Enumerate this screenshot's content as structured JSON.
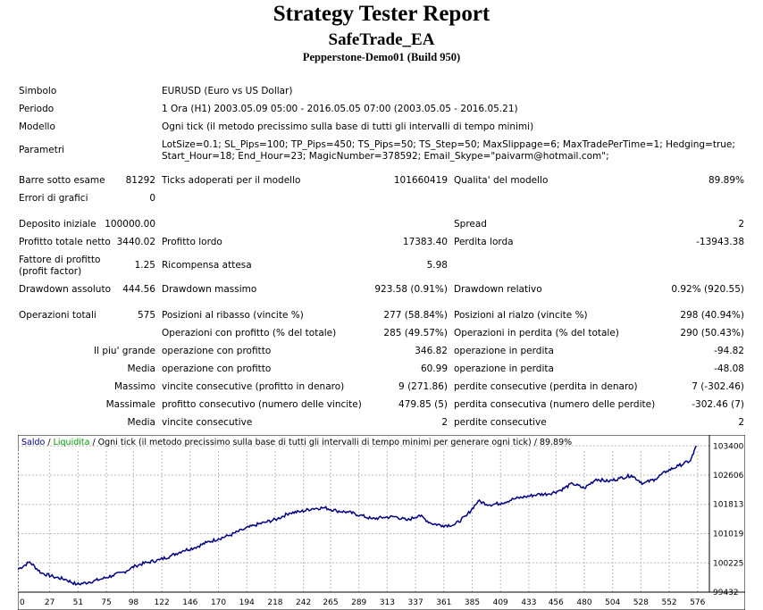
{
  "report": {
    "title": "Strategy Tester Report",
    "expert": "SafeTrade_EA",
    "server": "Pepperstone-Demo01 (Build 950)"
  },
  "info": {
    "symbol_label": "Simbolo",
    "symbol_value": "EURUSD (Euro vs US Dollar)",
    "period_label": "Periodo",
    "period_value": "1 Ora (H1) 2003.05.09 05:00 - 2016.05.05 07:00 (2003.05.05 - 2016.05.21)",
    "model_label": "Modello",
    "model_value": "Ogni tick (il metodo precissimo sulla base di tutti gli intervalli di tempo minimi)",
    "params_label": "Parametri",
    "params_line1": "LotSize=0.1; SL_Pips=100; TP_Pips=450; TS_Pips=50; TS_Step=50; MaxSlippage=6; MaxTradePerTime=1; Hedging=true;",
    "params_line2": "Start_Hour=18; End_Hour=23; MagicNumber=378592; Email_Skype=\"paivarm@hotmail.com\";"
  },
  "stats": {
    "bars_label": "Barre sotto esame",
    "bars_value": "81292",
    "ticks_label": "Ticks adoperati per il modello",
    "ticks_value": "101660419",
    "quality_label": "Qualita' del modello",
    "quality_value": "89.89%",
    "errors_label": "Errori di grafici",
    "errors_value": "0",
    "deposit_label": "Deposito iniziale",
    "deposit_value": "100000.00",
    "spread_label": "Spread",
    "spread_value": "2",
    "net_label": "Profitto totale netto",
    "net_value": "3440.02",
    "gross_profit_label": "Profitto lordo",
    "gross_profit_value": "17383.40",
    "gross_loss_label": "Perdita lorda",
    "gross_loss_value": "-13943.38",
    "pf_label_1": "Fattore di profitto",
    "pf_label_2": "(profit factor)",
    "pf_value": "1.25",
    "expected_label": "Ricompensa attesa",
    "expected_value": "5.98",
    "dd_abs_label": "Drawdown assoluto",
    "dd_abs_value": "444.56",
    "dd_max_label": "Drawdown massimo",
    "dd_max_value": "923.58 (0.91%)",
    "dd_rel_label": "Drawdown relativo",
    "dd_rel_value": "0.92% (920.55)",
    "trades_label": "Operazioni totali",
    "trades_value": "575",
    "short_label": "Posizioni al ribasso (vincite %)",
    "short_value": "277 (58.84%)",
    "long_label": "Posizioni al rialzo (vincite %)",
    "long_value": "298 (40.94%)",
    "profit_trades_label": "Operazioni con profitto (% del totale)",
    "profit_trades_value": "285 (49.57%)",
    "loss_trades_label": "Operazioni in perdita (% del totale)",
    "loss_trades_value": "290 (50.43%)",
    "largest_label": "Il piu' grande",
    "largest_profit_label": "operazione con profitto",
    "largest_profit_value": "346.82",
    "largest_loss_label": "operazione in perdita",
    "largest_loss_value": "-94.82",
    "average_label": "Media",
    "avg_profit_label": "operazione con profitto",
    "avg_profit_value": "60.99",
    "avg_loss_label": "operazione in perdita",
    "avg_loss_value": "-48.08",
    "maximum_label": "Massimo",
    "max_wins_label": "vincite consecutive (profitto in denaro)",
    "max_wins_value": "9 (271.86)",
    "max_losses_label": "perdite consecutive (perdita in denaro)",
    "max_losses_value": "7 (-302.46)",
    "maximal_label": "Massimale",
    "maximal_profit_label": "profitto consecutivo (numero delle vincite)",
    "maximal_profit_value": "479.85 (5)",
    "maximal_loss_label": "perdita consecutiva (numero delle perdite)",
    "maximal_loss_value": "-302.46 (7)",
    "average2_label": "Media",
    "avg_wins_label": "vincite consecutive",
    "avg_wins_value": "2",
    "avg_losses_label": "perdite consecutive",
    "avg_losses_value": "2"
  },
  "chart_data": {
    "type": "line",
    "legend_balance": "Saldo",
    "legend_sep1": " / ",
    "legend_equity": "Liquidita",
    "legend_rest": " / Ogni tick (il metodo precissimo sulla base di tutti gli intervalli di tempo minimi per generare ogni tick) / 89.89%",
    "x_ticks": [
      0,
      27,
      51,
      75,
      98,
      122,
      146,
      170,
      194,
      218,
      242,
      265,
      289,
      313,
      337,
      361,
      385,
      409,
      433,
      456,
      480,
      504,
      528,
      552,
      576
    ],
    "y_ticks": [
      99432,
      100225,
      101019,
      101813,
      102606,
      103400
    ],
    "xlim": [
      0,
      586
    ],
    "ylim": [
      99432,
      103600
    ],
    "grid": true,
    "colors": {
      "balance": "#000080",
      "equity": "#009900",
      "grid": "#b8b8b8"
    },
    "series": [
      {
        "name": "Saldo",
        "x": [
          0,
          10,
          20,
          30,
          40,
          50,
          60,
          70,
          80,
          90,
          100,
          110,
          120,
          130,
          140,
          150,
          160,
          170,
          180,
          190,
          200,
          210,
          220,
          230,
          240,
          250,
          260,
          270,
          280,
          290,
          300,
          310,
          320,
          330,
          340,
          350,
          360,
          370,
          380,
          390,
          400,
          410,
          420,
          430,
          440,
          450,
          460,
          470,
          480,
          490,
          500,
          510,
          520,
          530,
          540,
          550,
          560,
          570,
          575
        ],
        "y": [
          100050,
          100250,
          99950,
          99850,
          99780,
          99640,
          99700,
          99780,
          99880,
          99980,
          100150,
          100240,
          100310,
          100420,
          100560,
          100640,
          100780,
          100880,
          100980,
          101120,
          101240,
          101330,
          101420,
          101580,
          101620,
          101700,
          101720,
          101640,
          101600,
          101520,
          101420,
          101460,
          101480,
          101380,
          101520,
          101300,
          101240,
          101260,
          101500,
          101900,
          101800,
          101850,
          101960,
          102020,
          102080,
          102100,
          102200,
          102380,
          102250,
          102500,
          102440,
          102520,
          102600,
          102380,
          102500,
          102720,
          102860,
          103000,
          103400
        ]
      }
    ]
  }
}
